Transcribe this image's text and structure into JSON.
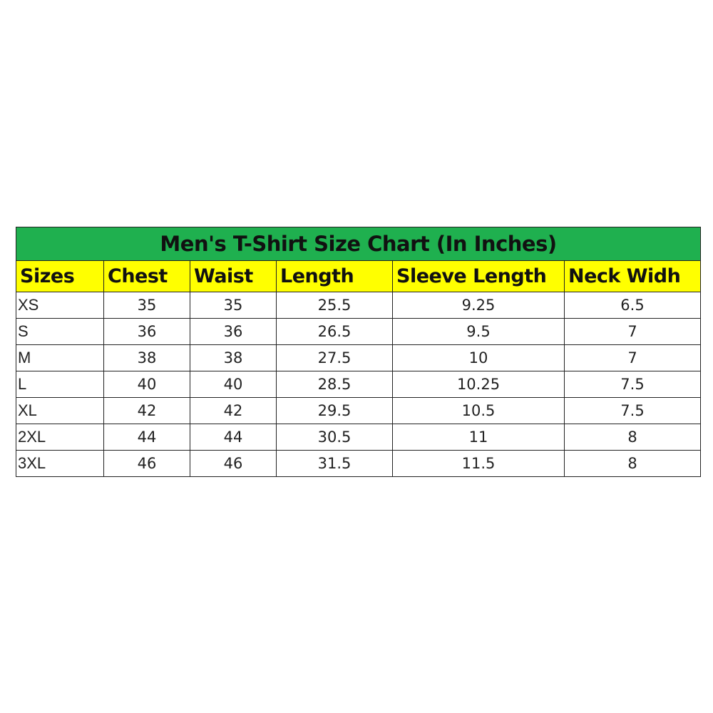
{
  "title": "Men's T-Shirt Size Chart (In Inches)",
  "colors": {
    "title_bg": "#1fb04f",
    "header_bg": "#ffff00"
  },
  "columns": [
    "Sizes",
    "Chest",
    "Waist",
    "Length",
    "Sleeve Length",
    "Neck Widh"
  ],
  "rows": [
    [
      "XS",
      "35",
      "35",
      "25.5",
      "9.25",
      "6.5"
    ],
    [
      "S",
      "36",
      "36",
      "26.5",
      "9.5",
      "7"
    ],
    [
      "M",
      "38",
      "38",
      "27.5",
      "10",
      "7"
    ],
    [
      "L",
      "40",
      "40",
      "28.5",
      "10.25",
      "7.5"
    ],
    [
      "XL",
      "42",
      "42",
      "29.5",
      "10.5",
      "7.5"
    ],
    [
      "2XL",
      "44",
      "44",
      "30.5",
      "11",
      "8"
    ],
    [
      "3XL",
      "46",
      "46",
      "31.5",
      "11.5",
      "8"
    ]
  ]
}
